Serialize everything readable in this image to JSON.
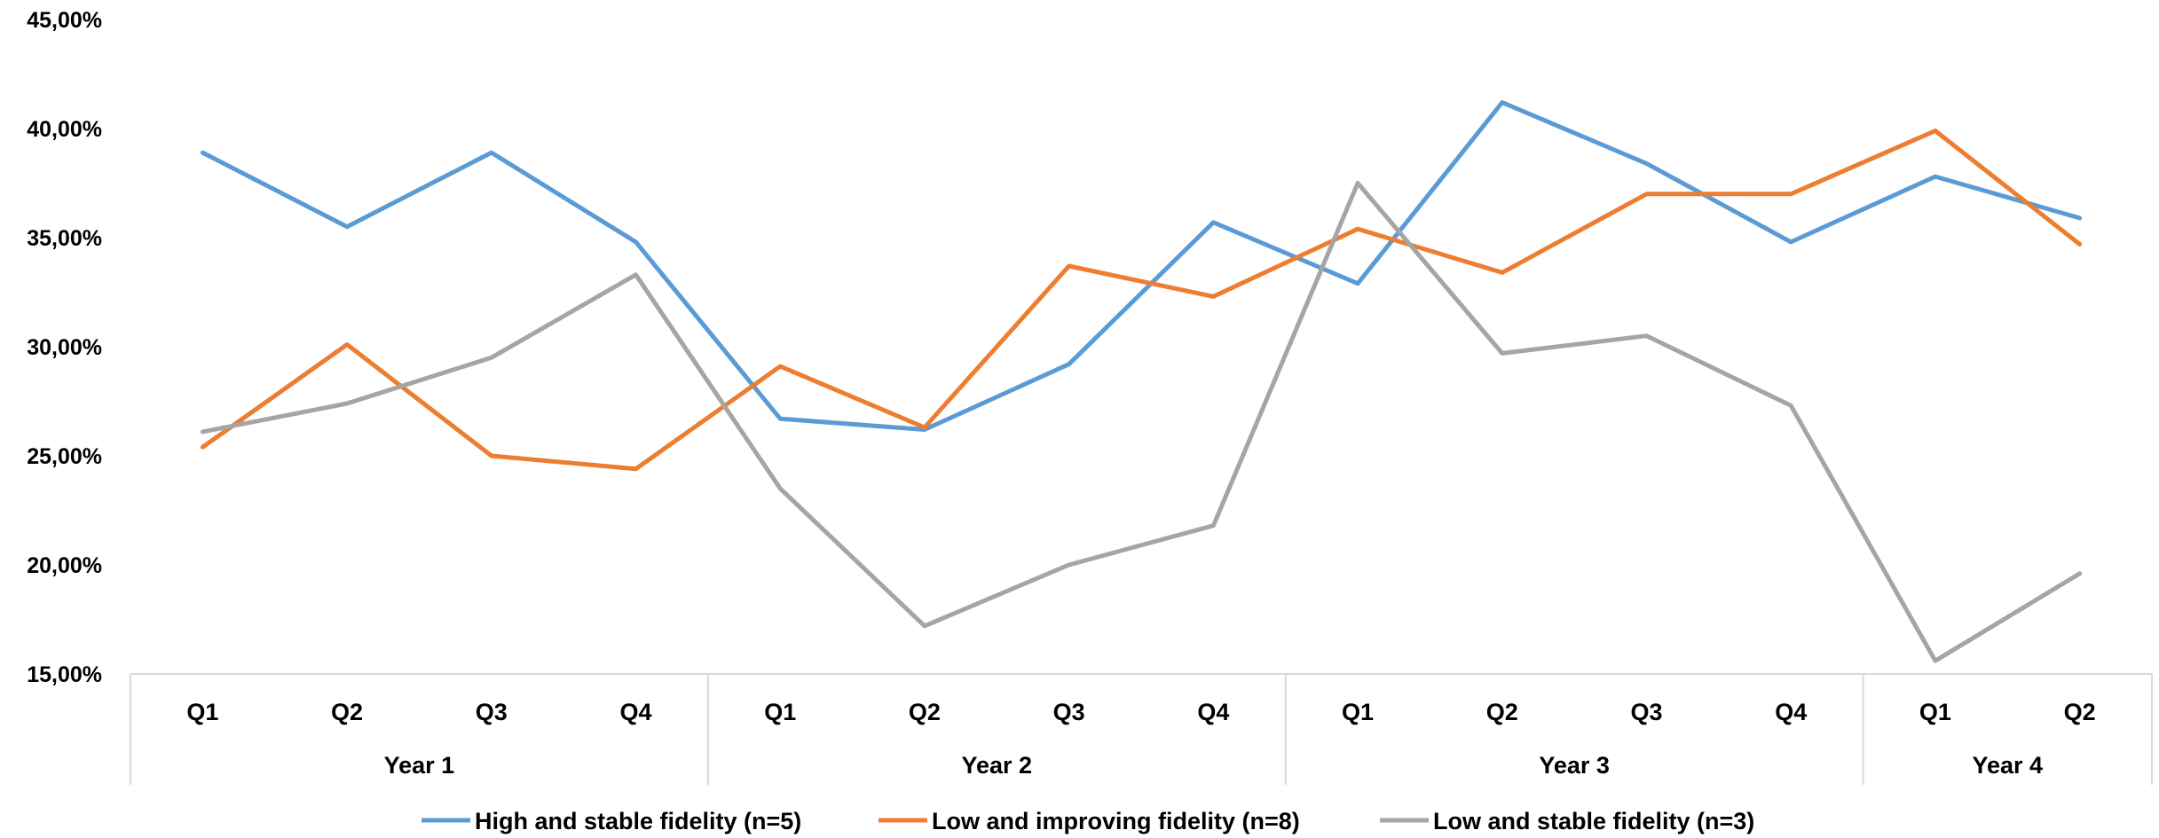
{
  "chart_data": {
    "type": "line",
    "title": "",
    "xlabel": "",
    "ylabel": "",
    "ylim": [
      0.15,
      0.45
    ],
    "y_ticks": [
      "15,00%",
      "20,00%",
      "25,00%",
      "30,00%",
      "35,00%",
      "40,00%",
      "45,00%"
    ],
    "grid": false,
    "legend_position": "bottom",
    "categories": [
      "Year 1 Q1",
      "Year 1 Q2",
      "Year 1 Q3",
      "Year 1 Q4",
      "Year 2 Q1",
      "Year 2 Q2",
      "Year 2 Q3",
      "Year 2 Q4",
      "Year 3 Q1",
      "Year 3 Q2",
      "Year 3 Q3",
      "Year 3 Q4",
      "Year 4 Q1",
      "Year 4 Q2"
    ],
    "quarter_labels": [
      "Q1",
      "Q2",
      "Q3",
      "Q4",
      "Q1",
      "Q2",
      "Q3",
      "Q4",
      "Q1",
      "Q2",
      "Q3",
      "Q4",
      "Q1",
      "Q2"
    ],
    "groups": [
      {
        "label": "Year 1",
        "count": 4
      },
      {
        "label": "Year 2",
        "count": 4
      },
      {
        "label": "Year 3",
        "count": 4
      },
      {
        "label": "Year 4",
        "count": 2
      }
    ],
    "series": [
      {
        "name": "High and stable fidelity (n=5)",
        "color": "#5B9BD5",
        "values": [
          0.389,
          0.355,
          0.389,
          0.348,
          0.267,
          0.262,
          0.292,
          0.357,
          0.329,
          0.412,
          0.384,
          0.348,
          0.378,
          0.359
        ]
      },
      {
        "name": "Low and improving fidelity (n=8)",
        "color": "#ED7D31",
        "values": [
          0.254,
          0.301,
          0.25,
          0.244,
          0.291,
          0.263,
          0.337,
          0.323,
          0.354,
          0.334,
          0.37,
          0.37,
          0.399,
          0.347
        ]
      },
      {
        "name": "Low and stable fidelity (n=3)",
        "color": "#A5A5A5",
        "values": [
          0.261,
          0.274,
          0.295,
          0.333,
          0.235,
          0.172,
          0.2,
          0.218,
          0.375,
          0.297,
          0.305,
          0.273,
          0.156,
          0.196
        ]
      }
    ]
  }
}
